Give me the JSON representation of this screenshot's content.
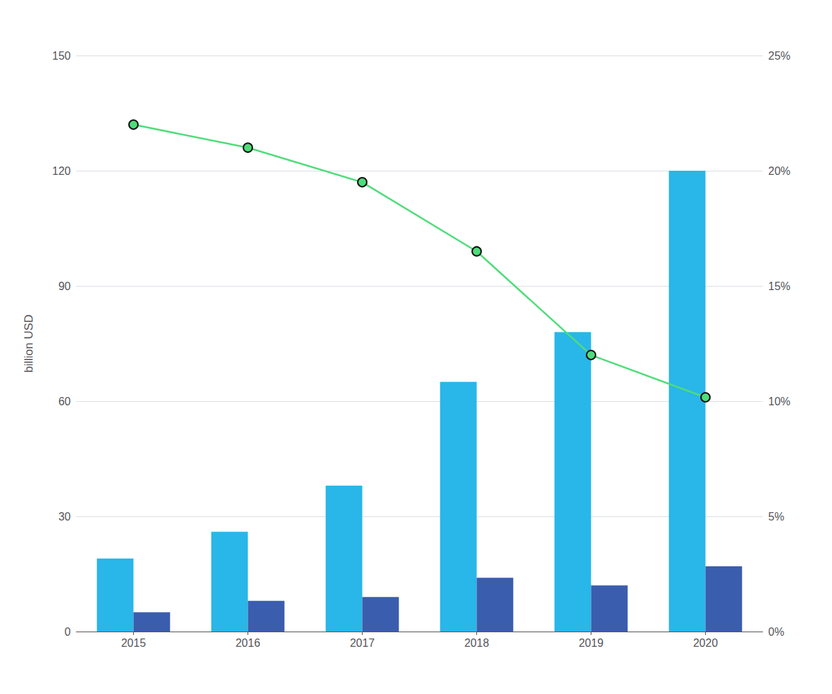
{
  "chart_data": {
    "type": "bar",
    "categories": [
      "2015",
      "2016",
      "2017",
      "2018",
      "2019",
      "2020"
    ],
    "series": [
      {
        "type": "bar",
        "color": "#29B6E8",
        "values": [
          19,
          26,
          38,
          65,
          78,
          120
        ]
      },
      {
        "type": "bar",
        "color": "#3A5DAE",
        "values": [
          5,
          8,
          9,
          14,
          12,
          17
        ]
      },
      {
        "type": "line",
        "color": "#4EDD7A",
        "marker": "circle",
        "values": [
          132,
          126,
          117,
          99,
          72,
          61
        ]
      }
    ],
    "ylabel": "billion USD",
    "ylim": [
      0,
      150
    ],
    "yticks": [
      0,
      30,
      60,
      90,
      120,
      150
    ],
    "y2lim": [
      0,
      0.25
    ],
    "y2ticks": [
      {
        "value": 0.0,
        "label": "0%"
      },
      {
        "value": 0.05,
        "label": "5%"
      },
      {
        "value": 0.1,
        "label": "10%"
      },
      {
        "value": 0.15,
        "label": "15%"
      },
      {
        "value": 0.2,
        "label": "20%"
      },
      {
        "value": 0.25,
        "label": "25%"
      }
    ],
    "grid": true
  }
}
